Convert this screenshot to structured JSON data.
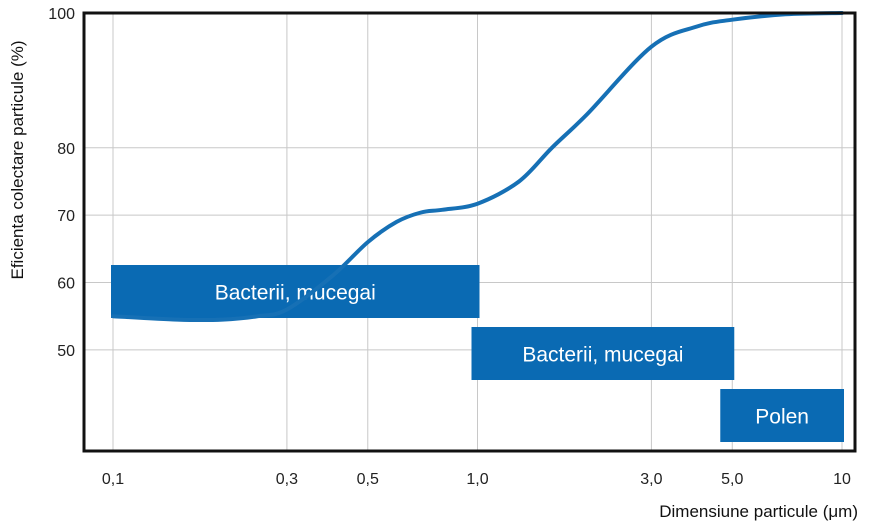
{
  "chart_data": {
    "type": "line",
    "xlabel": "Dimensiune particule (μm)",
    "ylabel": "Eficienta colectare particule (%)",
    "x_scale": "log",
    "xlim": [
      0.1,
      10
    ],
    "ylim": [
      35,
      100
    ],
    "x_ticks": [
      0.1,
      0.3,
      0.5,
      1.0,
      3.0,
      5.0,
      10
    ],
    "x_tick_labels": [
      "0,1",
      "0,3",
      "0,5",
      "1,0",
      "3,0",
      "5,0",
      "10"
    ],
    "y_ticks": [
      50,
      60,
      70,
      80,
      100
    ],
    "y_tick_labels": [
      "50",
      "60",
      "70",
      "80",
      "100"
    ],
    "grid": true,
    "series": [
      {
        "color": "#1670b5",
        "x": [
          0.1,
          0.15,
          0.2,
          0.25,
          0.3,
          0.4,
          0.5,
          0.6,
          0.7,
          0.8,
          1.0,
          1.3,
          1.6,
          2.0,
          3.0,
          4.0,
          5.0,
          7.0,
          10
        ],
        "y": [
          55,
          54.5,
          54.5,
          55,
          56,
          61,
          66,
          69,
          70.4,
          70.8,
          71.7,
          75,
          80,
          85,
          95,
          98,
          99,
          99.8,
          100
        ]
      }
    ],
    "bands": [
      {
        "label": "Bacterii, mucegai",
        "x_start": 0.1,
        "x_end": 1.0,
        "row": 1
      },
      {
        "label": "Bacterii, mucegai",
        "x_start": 1.0,
        "x_end": 5.0,
        "row": 2
      },
      {
        "label": "Polen",
        "x_start": 5.0,
        "x_end": 10,
        "row": 3
      }
    ],
    "colors": {
      "line": "#1670b5",
      "band": "#0a6ab3",
      "grid": "#c8c8c8",
      "frame": "#111111"
    }
  }
}
